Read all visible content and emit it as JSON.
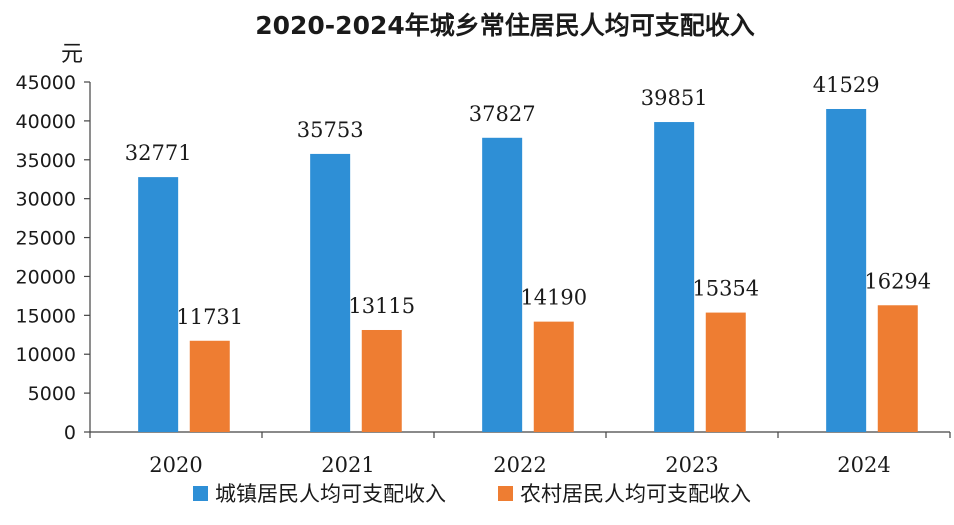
{
  "chart_data": {
    "type": "bar",
    "title": "2020-2024年城乡常住居民人均可支配收入",
    "ylabel": "元",
    "xlabel": "",
    "categories": [
      "2020",
      "2021",
      "2022",
      "2023",
      "2024"
    ],
    "ylim": [
      0,
      45000
    ],
    "yticks": [
      0,
      5000,
      10000,
      15000,
      20000,
      25000,
      30000,
      35000,
      40000,
      45000
    ],
    "grid": false,
    "legend_position": "bottom",
    "series": [
      {
        "name": "城镇居民人均可支配收入",
        "color": "#2e8fd6",
        "values": [
          32771,
          35753,
          37827,
          39851,
          41529
        ]
      },
      {
        "name": "农村居民人均可支配收入",
        "color": "#ee7d32",
        "values": [
          11731,
          13115,
          14190,
          15354,
          16294
        ]
      }
    ]
  }
}
